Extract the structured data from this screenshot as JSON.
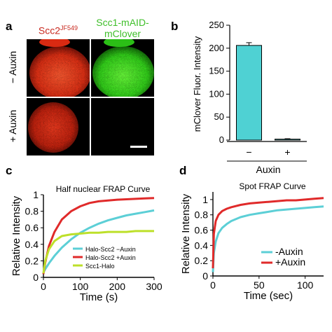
{
  "panels": {
    "a": {
      "letter": "a",
      "col1_title": "Scc2",
      "col1_title_sup": "JF549",
      "col1_color": "#c8281e",
      "col2_title_line1": "Scc1-mAID-",
      "col2_title_line2": "mClover",
      "col2_color": "#3fbf2a",
      "row1_label": "− Auxin",
      "row2_label": "+ Auxin"
    },
    "b": {
      "letter": "b"
    },
    "c": {
      "letter": "c"
    },
    "d": {
      "letter": "d"
    }
  },
  "chart_data": [
    {
      "panel": "b",
      "type": "bar",
      "categories": [
        "−",
        "+"
      ],
      "values": [
        206,
        2
      ],
      "error": [
        6,
        1
      ],
      "bar_color": "#4fd1d3",
      "ylabel": "mClover Fluor. Intensity",
      "xlabel": "Auxin",
      "ylim": [
        0,
        250
      ],
      "yticks": [
        0,
        50,
        100,
        150,
        200,
        250
      ]
    },
    {
      "panel": "c",
      "type": "line",
      "title": "Half nuclear FRAP Curve",
      "xlabel": "Time (s)",
      "ylabel": "Relative Intensity",
      "xlim": [
        0,
        300
      ],
      "ylim": [
        0,
        1
      ],
      "xticks": [
        0,
        100,
        200,
        300
      ],
      "yticks": [
        0,
        0.2,
        0.4,
        0.6,
        0.8,
        1
      ],
      "legend_position": "bottom-right",
      "series": [
        {
          "name": "Halo-Scc2 −Auxin",
          "color": "#5ccfd6",
          "x": [
            0,
            5,
            15,
            30,
            50,
            75,
            100,
            125,
            150,
            175,
            200,
            225,
            250,
            275,
            300
          ],
          "y": [
            0.06,
            0.1,
            0.17,
            0.26,
            0.36,
            0.46,
            0.54,
            0.6,
            0.65,
            0.69,
            0.72,
            0.75,
            0.77,
            0.79,
            0.81
          ]
        },
        {
          "name": "Halo-Scc2 +Auxin",
          "color": "#e02a2a",
          "x": [
            0,
            5,
            15,
            30,
            50,
            75,
            100,
            125,
            150,
            175,
            200,
            225,
            250,
            275,
            300
          ],
          "y": [
            0.04,
            0.18,
            0.38,
            0.55,
            0.7,
            0.8,
            0.86,
            0.9,
            0.92,
            0.93,
            0.94,
            0.945,
            0.95,
            0.955,
            0.96
          ]
        },
        {
          "name": "Scc1-Halo",
          "color": "#bde02a",
          "x": [
            0,
            5,
            15,
            30,
            50,
            75,
            100,
            125,
            150,
            175,
            200,
            225,
            250,
            275,
            300
          ],
          "y": [
            0.05,
            0.2,
            0.34,
            0.44,
            0.5,
            0.52,
            0.53,
            0.54,
            0.54,
            0.55,
            0.55,
            0.55,
            0.56,
            0.56,
            0.56
          ]
        }
      ]
    },
    {
      "panel": "d",
      "type": "line",
      "title": "Spot FRAP Curve",
      "xlabel": "Time (sec)",
      "ylabel": "Relative Intensity",
      "xlim": [
        0,
        120
      ],
      "ylim": [
        0,
        1.1
      ],
      "xticks": [
        0,
        50,
        100
      ],
      "yticks": [
        0,
        0.2,
        0.4,
        0.6,
        0.8,
        1
      ],
      "legend_position": "bottom-right",
      "series": [
        {
          "name": "-Auxin",
          "color": "#5ccfd6",
          "x": [
            0,
            1,
            3,
            6,
            10,
            15,
            20,
            30,
            40,
            50,
            60,
            70,
            80,
            90,
            100,
            110,
            120
          ],
          "y": [
            0.05,
            0.3,
            0.45,
            0.56,
            0.63,
            0.68,
            0.72,
            0.77,
            0.8,
            0.82,
            0.84,
            0.86,
            0.87,
            0.88,
            0.89,
            0.9,
            0.91
          ]
        },
        {
          "name": "+Auxin",
          "color": "#e02a2a",
          "x": [
            0,
            1,
            3,
            6,
            10,
            15,
            20,
            30,
            40,
            50,
            60,
            70,
            80,
            90,
            100,
            110,
            120
          ],
          "y": [
            0.1,
            0.55,
            0.72,
            0.8,
            0.85,
            0.88,
            0.9,
            0.93,
            0.95,
            0.96,
            0.97,
            0.98,
            0.99,
            0.99,
            1.0,
            1.01,
            1.02
          ]
        }
      ]
    }
  ]
}
